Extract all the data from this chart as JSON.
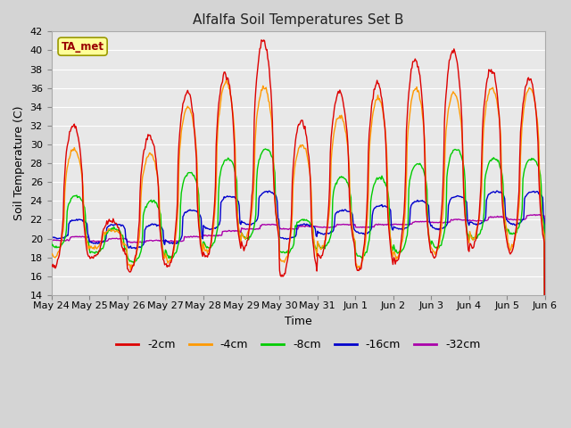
{
  "title": "Alfalfa Soil Temperatures Set B",
  "xlabel": "Time",
  "ylabel": "Soil Temperature (C)",
  "ylim": [
    14,
    42
  ],
  "yticks": [
    14,
    16,
    18,
    20,
    22,
    24,
    26,
    28,
    30,
    32,
    34,
    36,
    38,
    40,
    42
  ],
  "bg_color": "#e8e8e8",
  "plot_bg": "#e8e8e8",
  "grid_color": "#ffffff",
  "line_colors": {
    "-2cm": "#dd0000",
    "-4cm": "#ff9900",
    "-8cm": "#00cc00",
    "-16cm": "#0000cc",
    "-32cm": "#aa00aa"
  },
  "annotation_text": "TA_met",
  "annotation_color": "#990000",
  "annotation_bg": "#ffff99",
  "annotation_border": "#999900"
}
